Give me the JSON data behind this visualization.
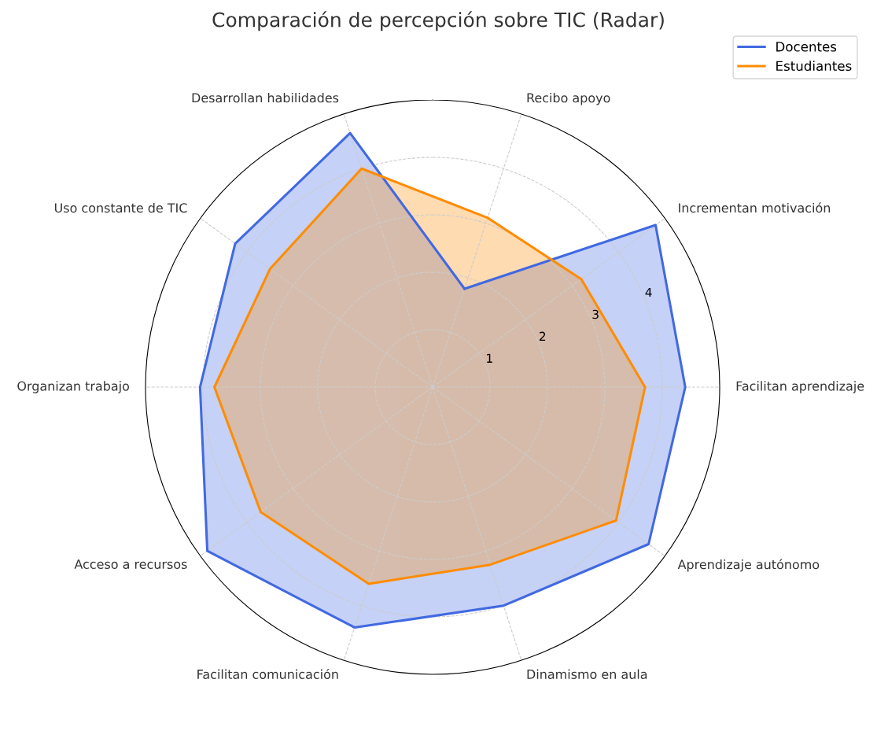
{
  "chart_data": {
    "type": "radar",
    "title": "Comparación de percepción sobre TIC (Radar)",
    "categories": [
      "Recibo apoyo",
      "Incrementan motivación",
      "Facilitan aprendizaje",
      "Aprendizaje autónomo",
      "Dinamismo en aula",
      "Facilitan comunicación",
      "Acceso a recursos",
      "Organizan trabajo",
      "Uso constante de TIC",
      "Desarrollan habilidades"
    ],
    "series": [
      {
        "name": "Docentes",
        "color": "#4169e1",
        "values": [
          1.8,
          4.8,
          4.4,
          4.65,
          4.0,
          4.4,
          4.85,
          4.05,
          4.25,
          4.65
        ]
      },
      {
        "name": "Estudiantes",
        "color": "#ff8c00",
        "values": [
          3.1,
          3.2,
          3.7,
          3.95,
          3.25,
          3.6,
          3.7,
          3.8,
          3.5,
          4.0
        ]
      }
    ],
    "ylim": [
      0,
      5
    ],
    "yticks": [
      1,
      2,
      3,
      4
    ],
    "grid": true,
    "legend": "top right",
    "line_style": "solid",
    "marker": "none"
  }
}
